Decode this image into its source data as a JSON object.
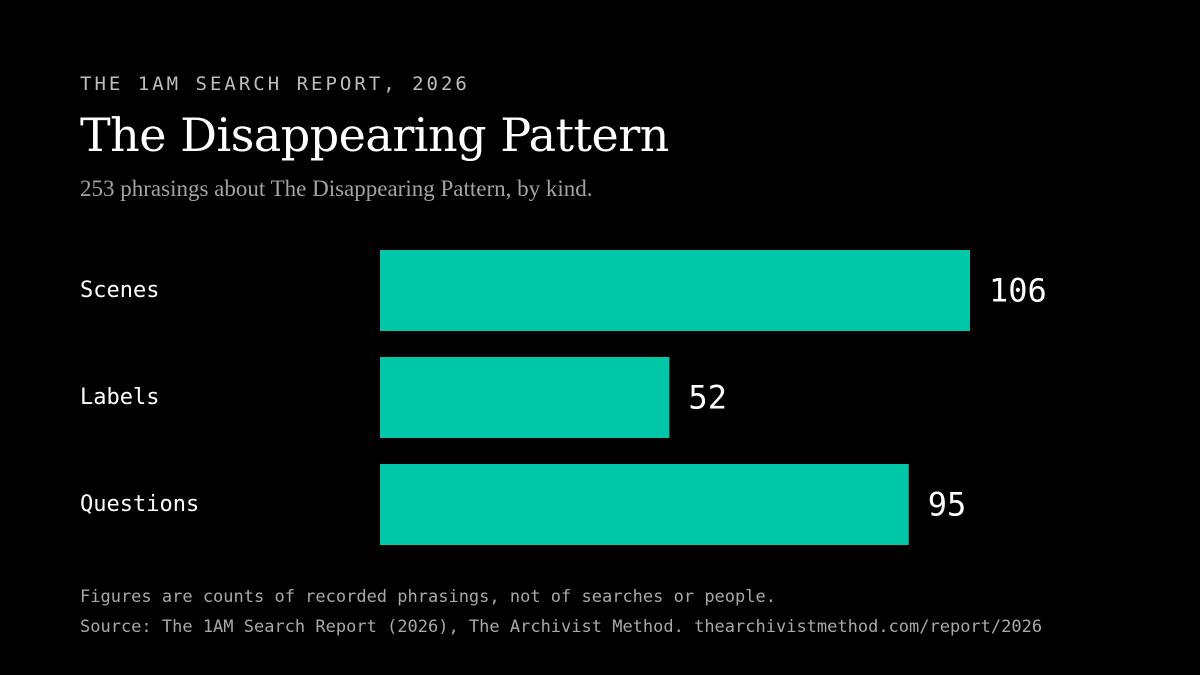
{
  "header": {
    "eyebrow": "THE 1AM SEARCH REPORT, 2026",
    "title": "The Disappearing Pattern",
    "subtitle": "253 phrasings about The Disappearing Pattern, by kind."
  },
  "chart_data": {
    "type": "bar",
    "orientation": "horizontal",
    "categories": [
      "Scenes",
      "Labels",
      "Questions"
    ],
    "values": [
      106,
      52,
      95
    ],
    "bar_color": "#00c7a8",
    "value_labels": [
      "106",
      "52",
      "95"
    ],
    "grid": false,
    "xlim": [
      0,
      106
    ]
  },
  "footer": {
    "note": "Figures are counts of recorded phrasings, not of searches or people.",
    "source": "Source: The 1AM Search Report (2026), The Archivist Method. thearchivistmethod.com/report/2026"
  }
}
